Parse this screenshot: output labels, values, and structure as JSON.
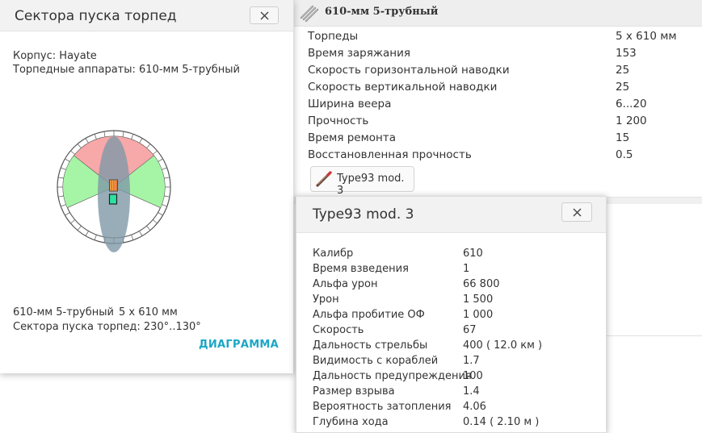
{
  "launcher_panel": {
    "title": "610-мм 5-трубный",
    "stats": [
      {
        "label": "Торпеды",
        "value": "5 x 610 мм"
      },
      {
        "label": "Время заряжания",
        "value": "153"
      },
      {
        "label": "Скорость горизонтальной наводки",
        "value": "25"
      },
      {
        "label": "Скорость вертикальной наводки",
        "value": "25"
      },
      {
        "label": "Ширина веера",
        "value": "6...20"
      },
      {
        "label": "Прочность",
        "value": "1 200"
      },
      {
        "label": "Время ремонта",
        "value": "15"
      },
      {
        "label": "Восстановленная прочность",
        "value": "0.5"
      }
    ],
    "torpedo_button_label": "Type93 mod. 3",
    "icon": "torpedo-launcher-icon"
  },
  "sector_popup": {
    "title": "Сектора пуска торпед",
    "hull_line": "Корпус: Hayate",
    "launchers_line": "Торпедные аппараты: 610-мм 5-трубный",
    "summary_name": "610-мм 5-трубный",
    "summary_count": "5 x 610 мм",
    "sectors_line": "Сектора пуска торпед: 230°..130°",
    "diagram_link": "ДИАГРАММА",
    "close_icon": "close-icon",
    "colors": {
      "forward_sector": "#f7a8a8",
      "side_sector": "#a6f5a6",
      "hull": "#7f98a8",
      "link": "#1ba6c5"
    }
  },
  "torpedo_popup": {
    "title": "Type93 mod. 3",
    "close_icon": "close-icon",
    "stats": [
      {
        "label": "Калибр",
        "value": "610"
      },
      {
        "label": "Время взведения",
        "value": "1"
      },
      {
        "label": "Альфа урон",
        "value": "66 800"
      },
      {
        "label": "Урон",
        "value": "1 500"
      },
      {
        "label": "Альфа пробитие ОФ",
        "value": "1 000"
      },
      {
        "label": "Скорость",
        "value": "67"
      },
      {
        "label": "Дальность стрельбы",
        "value": "400 ( 12.0 км )"
      },
      {
        "label": "Видимость с кораблей",
        "value": "1.7"
      },
      {
        "label": "Дальность предупреждения",
        "value": "100"
      },
      {
        "label": "Размер взрыва",
        "value": "1.4"
      },
      {
        "label": "Вероятность затопления",
        "value": "4.06"
      },
      {
        "label": "Глубина хода",
        "value": "0.14 ( 2.10 м )"
      }
    ]
  }
}
